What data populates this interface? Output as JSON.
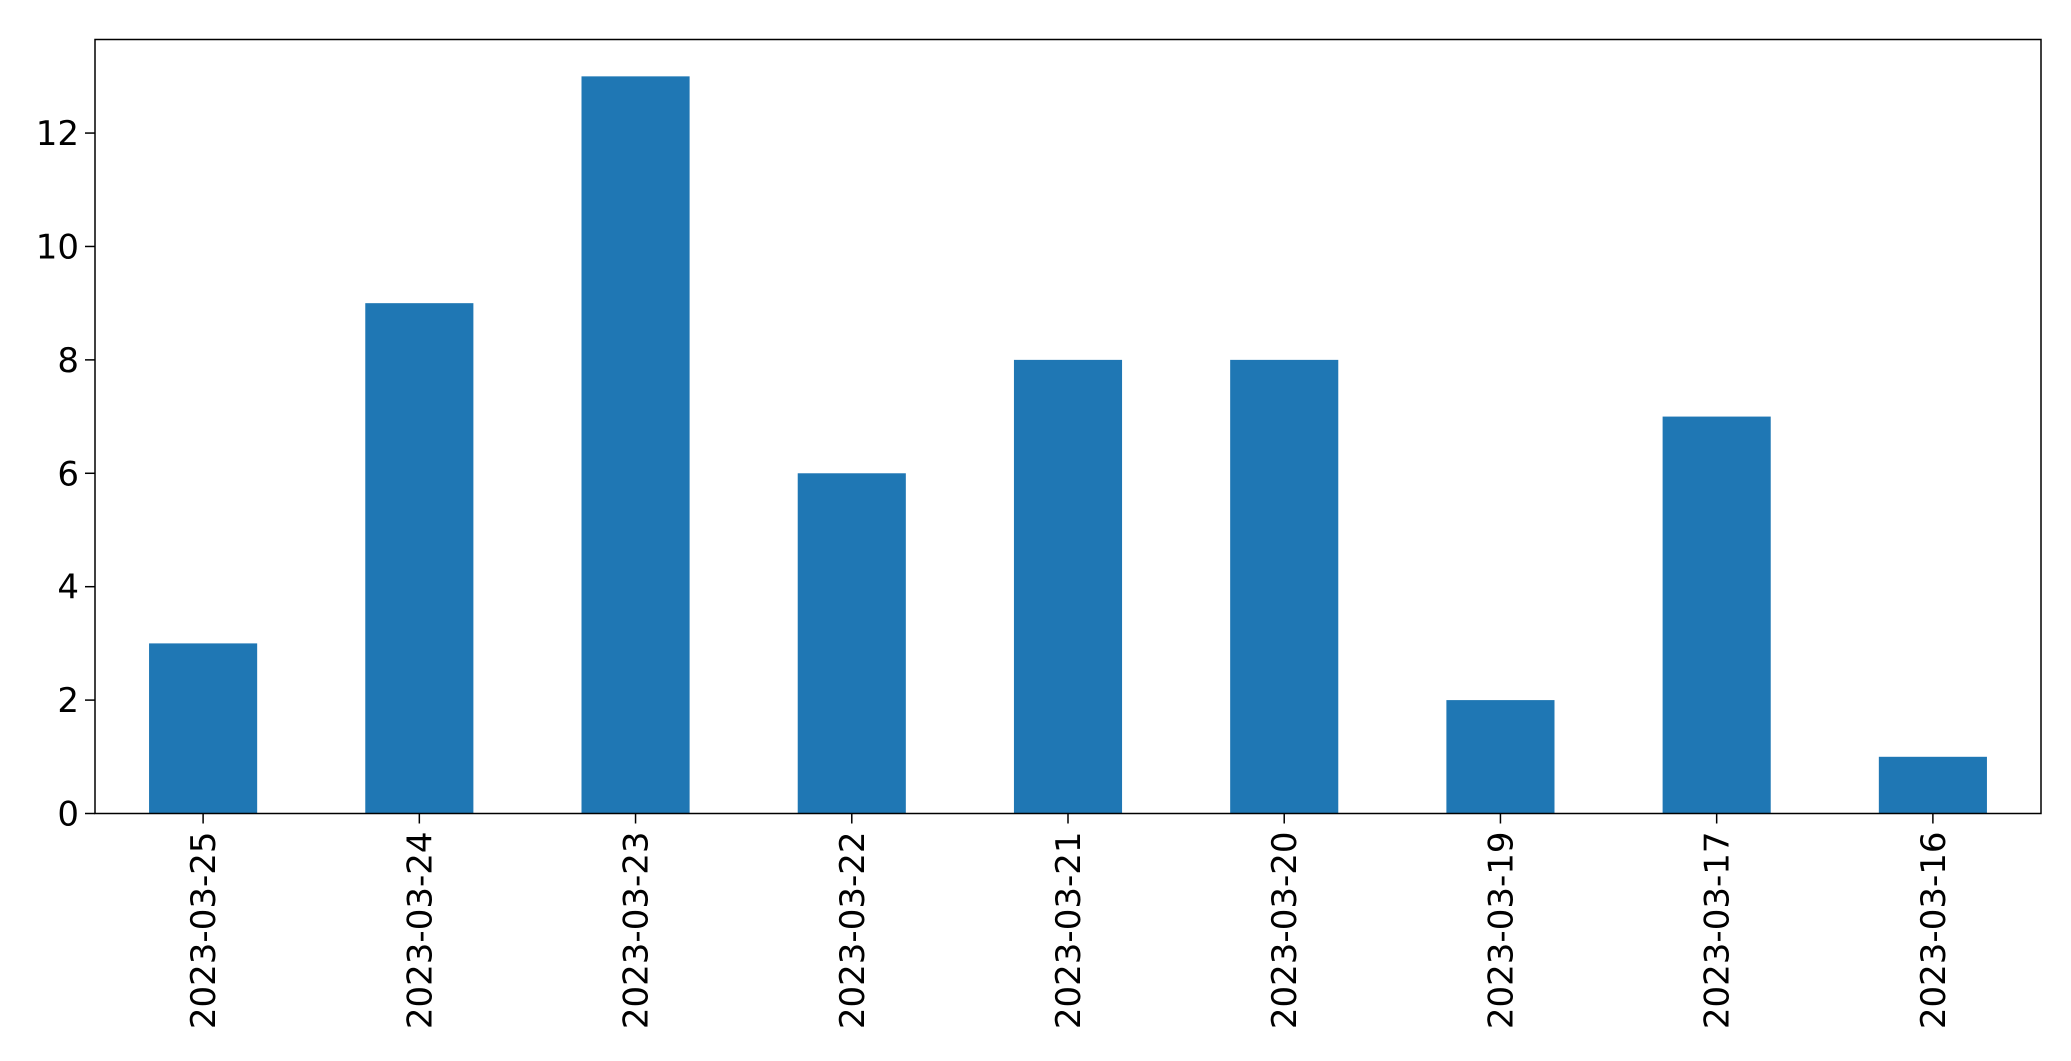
{
  "chart_data": {
    "type": "bar",
    "categories": [
      "2023-03-25",
      "2023-03-24",
      "2023-03-23",
      "2023-03-22",
      "2023-03-21",
      "2023-03-20",
      "2023-03-19",
      "2023-03-17",
      "2023-03-16"
    ],
    "values": [
      3,
      9,
      13,
      6,
      8,
      8,
      2,
      7,
      1
    ],
    "title": "",
    "xlabel": "",
    "ylabel": "",
    "ylim": [
      0,
      13.65
    ],
    "yticks": [
      0,
      2,
      4,
      6,
      8,
      10,
      12
    ],
    "grid": false,
    "bar_color": "#1f77b4"
  }
}
